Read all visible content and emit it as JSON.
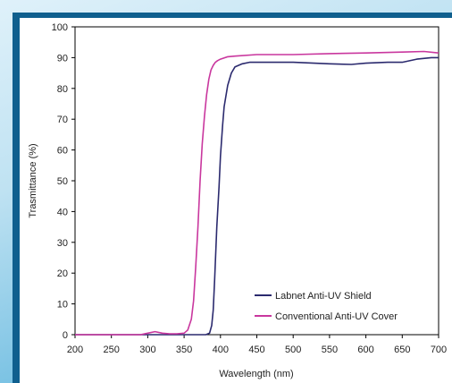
{
  "chart_data": {
    "type": "line",
    "xlabel": "Wavelength (nm)",
    "ylabel": "Trasmittance (%)",
    "xlim": [
      200,
      700
    ],
    "ylim": [
      0,
      100
    ],
    "xticks": [
      200,
      250,
      300,
      350,
      400,
      450,
      500,
      550,
      600,
      650,
      700
    ],
    "yticks": [
      0,
      10,
      20,
      30,
      40,
      50,
      60,
      70,
      80,
      90,
      100
    ],
    "grid": false,
    "legend_position": "bottom-right",
    "series": [
      {
        "name": "Labnet Anti-UV Shield",
        "color": "#2b2a6e",
        "x": [
          200,
          300,
          380,
          385,
          388,
          390,
          392,
          395,
          398,
          400,
          403,
          405,
          410,
          415,
          420,
          430,
          440,
          450,
          480,
          500,
          550,
          580,
          600,
          630,
          650,
          670,
          690,
          700
        ],
        "y": [
          0,
          0,
          0,
          0.5,
          3,
          8,
          18,
          35,
          48,
          58,
          68,
          74,
          81,
          85,
          87,
          88,
          88.5,
          88.5,
          88.5,
          88.5,
          88,
          87.8,
          88.2,
          88.5,
          88.5,
          89.5,
          90,
          90
        ]
      },
      {
        "name": "Conventional Anti-UV Cover",
        "color": "#c9379e",
        "x": [
          200,
          290,
          300,
          310,
          320,
          330,
          340,
          350,
          355,
          360,
          363,
          366,
          369,
          372,
          375,
          378,
          381,
          384,
          387,
          390,
          393,
          396,
          400,
          410,
          420,
          450,
          500,
          550,
          600,
          650,
          680,
          700
        ],
        "y": [
          0,
          0,
          0.5,
          1,
          0.5,
          0.3,
          0.3,
          0.5,
          1.5,
          5,
          11,
          22,
          35,
          50,
          62,
          71,
          78,
          83,
          86,
          87.5,
          88.5,
          89,
          89.5,
          90.3,
          90.5,
          91,
          91,
          91.3,
          91.5,
          91.8,
          92,
          91.5
        ]
      }
    ]
  }
}
